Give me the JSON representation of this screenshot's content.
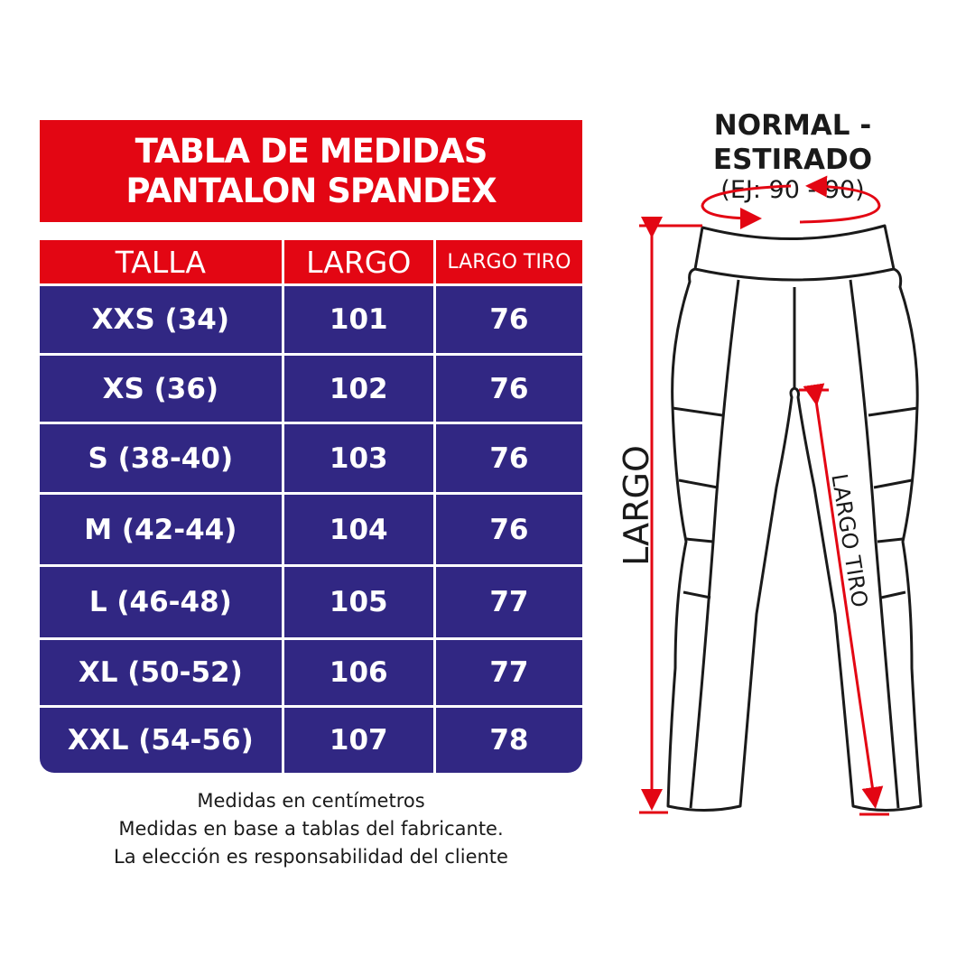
{
  "title": {
    "line1": "TABLA DE MEDIDAS",
    "line2": "PANTALON SPANDEX"
  },
  "table": {
    "headers": [
      "TALLA",
      "LARGO",
      "LARGO TIRO"
    ],
    "rows": [
      [
        "XXS (34)",
        "101",
        "76"
      ],
      [
        "XS (36)",
        "102",
        "76"
      ],
      [
        "S (38-40)",
        "103",
        "76"
      ],
      [
        "M (42-44)",
        "104",
        "76"
      ],
      [
        "L (46-48)",
        "105",
        "77"
      ],
      [
        "XL (50-52)",
        "106",
        "77"
      ],
      [
        "XXL (54-56)",
        "107",
        "78"
      ]
    ]
  },
  "notes": [
    "Medidas en centímetros",
    "Medidas en base a tablas del fabricante.",
    "La elección es responsabilidad del cliente"
  ],
  "diagram": {
    "title": "NORMAL - ESTIRADO",
    "subtitle": "(EJ: 90 - 90)",
    "largo_label": "LARGO",
    "largo_tiro_label": "LARGO TIRO"
  },
  "colors": {
    "red": "#e30613",
    "blue": "#312783",
    "line": "#1a1a1a"
  }
}
